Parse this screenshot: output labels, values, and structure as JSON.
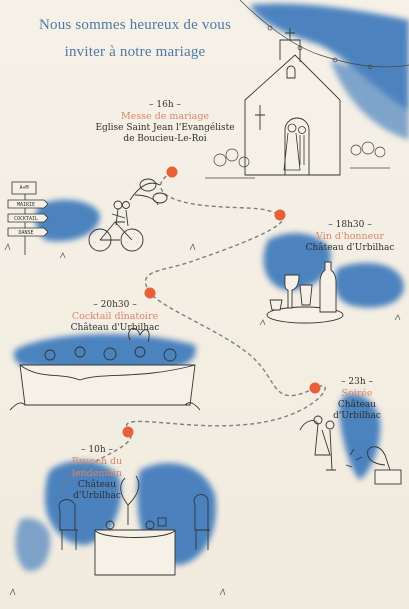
{
  "invitation": {
    "title_line1": "Nous sommes heureux de vous",
    "title_line2": "inviter à notre mariage"
  },
  "signpost": {
    "initials": "A+M",
    "arrows": [
      "MAIRIE",
      "COCKTAIL",
      "DANSE"
    ]
  },
  "events": [
    {
      "time": "– 16h –",
      "name": "Messe de mariage",
      "place_line1": "Eglise Saint Jean l'Evangéliste",
      "place_line2": "de Boucieu-Le-Roi"
    },
    {
      "time": "– 18h30 –",
      "name": "Vin d'honneur",
      "place_line1": "Château d'Urbilhac",
      "place_line2": ""
    },
    {
      "time": "– 20h30 –",
      "name": "Cocktail dînatoire",
      "place_line1": "Château d'Urbilhac",
      "place_line2": ""
    },
    {
      "time": "– 23h –",
      "name": "Soirée",
      "place_line1": "Château",
      "place_line2": "d'Urbilhac"
    },
    {
      "time": "– 10h –",
      "name_line1": "Brunch du",
      "name_line2": "lendemain",
      "place_line1": "Château",
      "place_line2": "d'Urbilhac"
    }
  ],
  "colors": {
    "watercolor_blue": "#2f6fb8",
    "dot_orange": "#e8603a",
    "event_name": "#d98568",
    "title_blue": "#4d7aa6"
  }
}
